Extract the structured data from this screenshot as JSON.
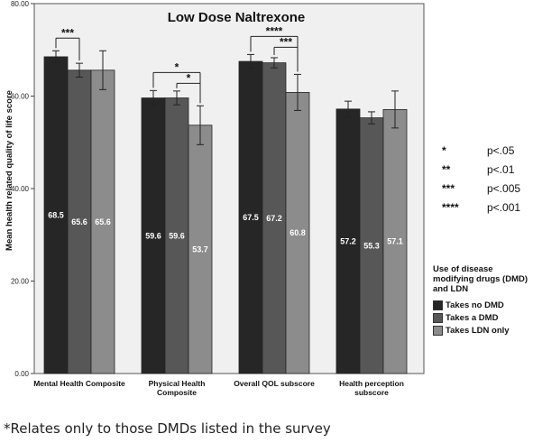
{
  "chart_data": {
    "type": "bar",
    "title": "Low Dose Naltrexone",
    "ylabel": "Mean health related quality of life score",
    "xlabel": "",
    "ylim": [
      0,
      80
    ],
    "yticks": [
      "0.00",
      "20.00",
      "40.00",
      "60.00",
      "80.00"
    ],
    "ytick_values": [
      0,
      20,
      40,
      60,
      80
    ],
    "categories": [
      [
        "Mental Health Composite"
      ],
      [
        "Physical Health",
        "Composite"
      ],
      [
        "Overall QOL subscore"
      ],
      [
        "Health perception",
        "subscore"
      ]
    ],
    "series": [
      {
        "name": "Takes no DMD",
        "color": "#262626",
        "values": [
          68.5,
          59.6,
          67.5,
          57.2
        ],
        "labels": [
          "68.5",
          "59.6",
          "67.5",
          "57.2"
        ],
        "error": [
          [
            67.2,
            69.8
          ],
          [
            58.0,
            61.2
          ],
          [
            66.0,
            69.0
          ],
          [
            55.5,
            58.9
          ]
        ]
      },
      {
        "name": "Takes a DMD",
        "color": "#575757",
        "values": [
          65.6,
          59.6,
          67.2,
          55.3
        ],
        "labels": [
          "65.6",
          "59.6",
          "67.2",
          "55.3"
        ],
        "error": [
          [
            64.1,
            67.1
          ],
          [
            58.1,
            61.1
          ],
          [
            66.1,
            68.3
          ],
          [
            54.0,
            56.6
          ]
        ]
      },
      {
        "name": "Takes LDN only",
        "color": "#8c8c8c",
        "values": [
          65.6,
          53.7,
          60.8,
          57.1
        ],
        "labels": [
          "65.6",
          "53.7",
          "60.8",
          "57.1"
        ],
        "error": [
          [
            61.4,
            69.8
          ],
          [
            49.5,
            57.9
          ],
          [
            56.9,
            64.7
          ],
          [
            53.1,
            61.1
          ]
        ]
      }
    ],
    "significance": [
      {
        "category": 0,
        "from": 0,
        "to": 1,
        "stars": "***"
      },
      {
        "category": 1,
        "from": 0,
        "to": 2,
        "stars": "*"
      },
      {
        "category": 1,
        "from": 1,
        "to": 2,
        "stars": "*"
      },
      {
        "category": 2,
        "from": 0,
        "to": 2,
        "stars": "****"
      },
      {
        "category": 2,
        "from": 1,
        "to": 2,
        "stars": "***"
      }
    ],
    "grid": false,
    "legend_placement": "right"
  },
  "significance_key": [
    {
      "stars": "*",
      "p": "p<.05"
    },
    {
      "stars": "**",
      "p": "p<.01"
    },
    {
      "stars": "***",
      "p": "p<.005"
    },
    {
      "stars": "****",
      "p": "p<.001"
    }
  ],
  "legend": {
    "title": "Use of disease modifying drugs (DMD) and LDN",
    "items": [
      {
        "label": "Takes no DMD",
        "color": "#262626"
      },
      {
        "label": "Takes a  DMD",
        "color": "#575757"
      },
      {
        "label": "Takes LDN only",
        "color": "#8c8c8c"
      }
    ]
  },
  "footnote": "*Relates  only to those DMDs listed in the survey"
}
